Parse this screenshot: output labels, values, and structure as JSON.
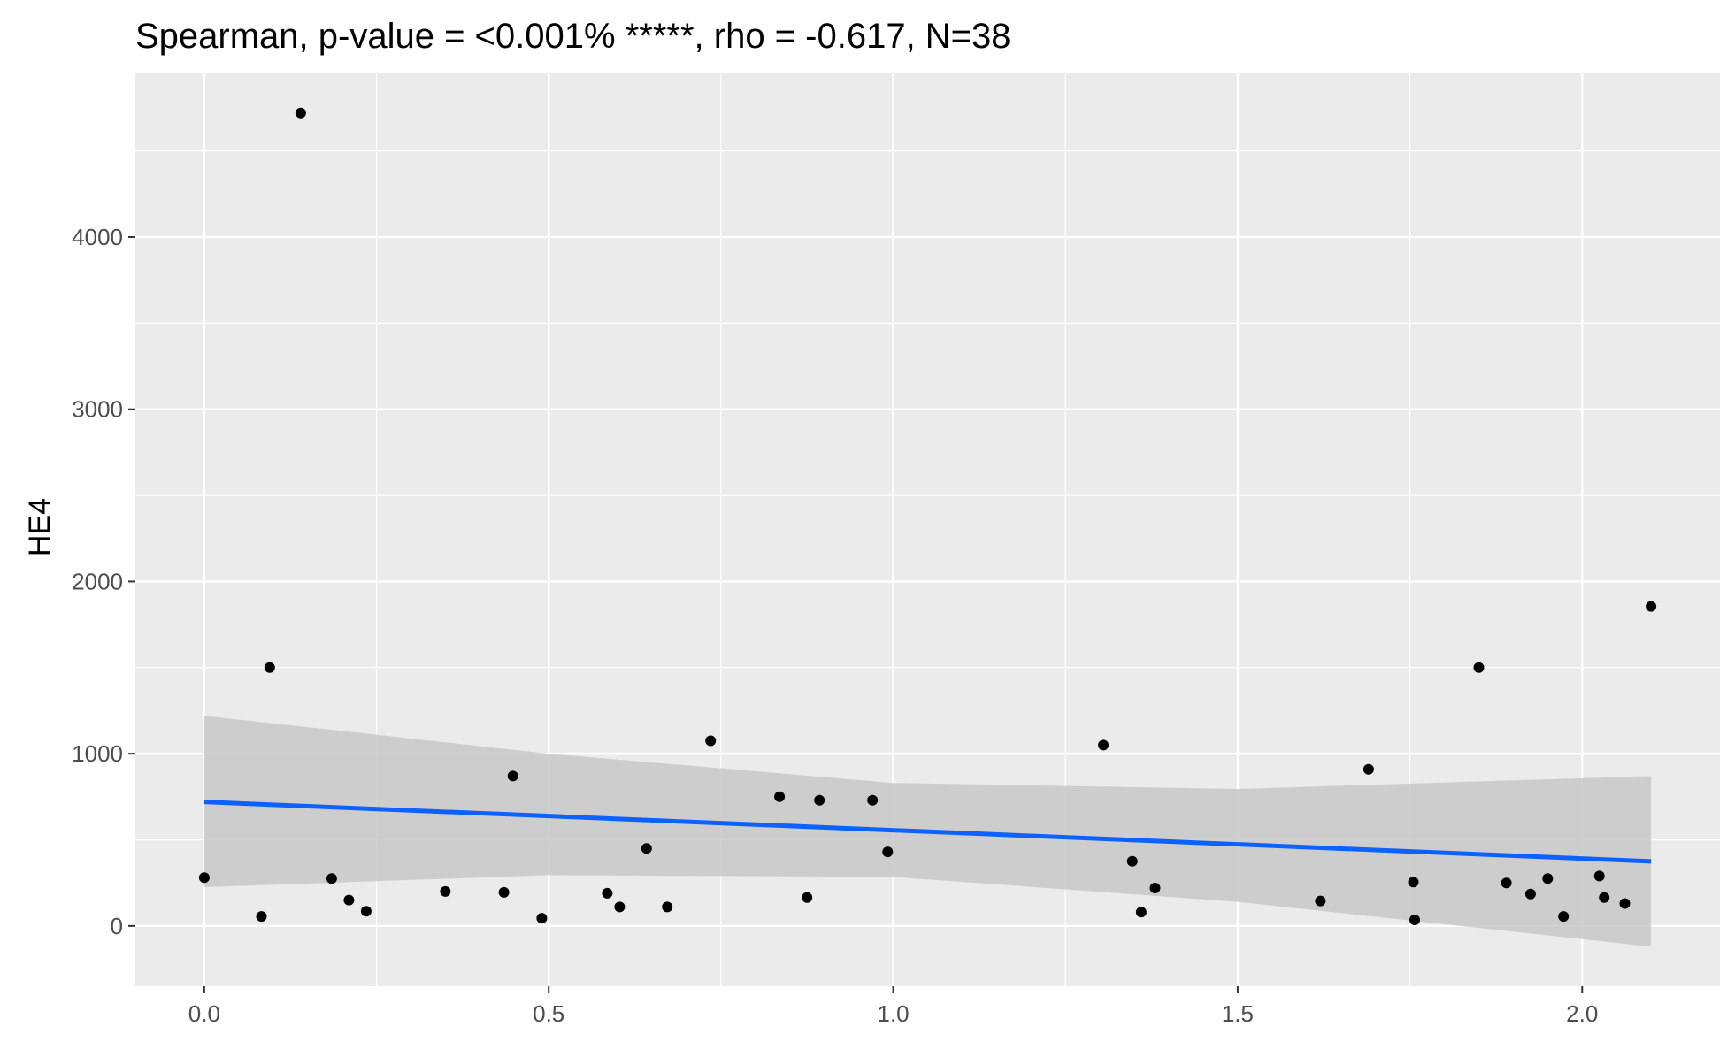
{
  "chart_data": {
    "type": "scatter",
    "title": "Spearman, p-value = <0.001% *****, rho = -0.617, N=38",
    "xlabel": "",
    "ylabel": "HE4",
    "xlim": [
      -0.1,
      2.2
    ],
    "ylim": [
      -350,
      4950
    ],
    "x_ticks": [
      0.0,
      0.5,
      1.0,
      1.5,
      2.0
    ],
    "x_tick_labels": [
      "0.0",
      "0.5",
      "1.0",
      "1.5",
      "2.0"
    ],
    "y_ticks": [
      0,
      1000,
      2000,
      3000,
      4000
    ],
    "y_tick_labels": [
      "0",
      "1000",
      "2000",
      "3000",
      "4000"
    ],
    "grid": true,
    "legend": "none",
    "colors": {
      "panel": "#ebebeb",
      "grid": "#ffffff",
      "point": "#000000",
      "line": "#0d62ff",
      "ribbon": "#c8c8c8"
    },
    "points": [
      {
        "x": 0.0,
        "y": 280
      },
      {
        "x": 0.083,
        "y": 55
      },
      {
        "x": 0.095,
        "y": 1500
      },
      {
        "x": 0.14,
        "y": 4720
      },
      {
        "x": 0.185,
        "y": 275
      },
      {
        "x": 0.21,
        "y": 150
      },
      {
        "x": 0.235,
        "y": 85
      },
      {
        "x": 0.35,
        "y": 200
      },
      {
        "x": 0.435,
        "y": 195
      },
      {
        "x": 0.448,
        "y": 870
      },
      {
        "x": 0.49,
        "y": 45
      },
      {
        "x": 0.585,
        "y": 190
      },
      {
        "x": 0.603,
        "y": 110
      },
      {
        "x": 0.642,
        "y": 450
      },
      {
        "x": 0.672,
        "y": 110
      },
      {
        "x": 0.735,
        "y": 1075
      },
      {
        "x": 0.835,
        "y": 750
      },
      {
        "x": 0.875,
        "y": 165
      },
      {
        "x": 0.893,
        "y": 730
      },
      {
        "x": 0.97,
        "y": 730
      },
      {
        "x": 0.992,
        "y": 430
      },
      {
        "x": 1.305,
        "y": 1050
      },
      {
        "x": 1.347,
        "y": 375
      },
      {
        "x": 1.36,
        "y": 80
      },
      {
        "x": 1.38,
        "y": 220
      },
      {
        "x": 1.62,
        "y": 145
      },
      {
        "x": 1.69,
        "y": 910
      },
      {
        "x": 1.755,
        "y": 255
      },
      {
        "x": 1.757,
        "y": 35
      },
      {
        "x": 1.85,
        "y": 1500
      },
      {
        "x": 1.89,
        "y": 250
      },
      {
        "x": 1.925,
        "y": 185
      },
      {
        "x": 1.95,
        "y": 275
      },
      {
        "x": 1.973,
        "y": 55
      },
      {
        "x": 2.025,
        "y": 290
      },
      {
        "x": 2.032,
        "y": 165
      },
      {
        "x": 2.062,
        "y": 130
      },
      {
        "x": 2.1,
        "y": 1855
      }
    ],
    "fit_line": {
      "method": "lm",
      "x": [
        0.0,
        2.1
      ],
      "y": [
        720,
        375
      ]
    },
    "confidence_band": {
      "x": [
        0.0,
        0.5,
        1.0,
        1.5,
        2.1
      ],
      "upper": [
        1220,
        1000,
        830,
        795,
        870
      ],
      "lower": [
        225,
        295,
        285,
        140,
        -120
      ]
    }
  }
}
